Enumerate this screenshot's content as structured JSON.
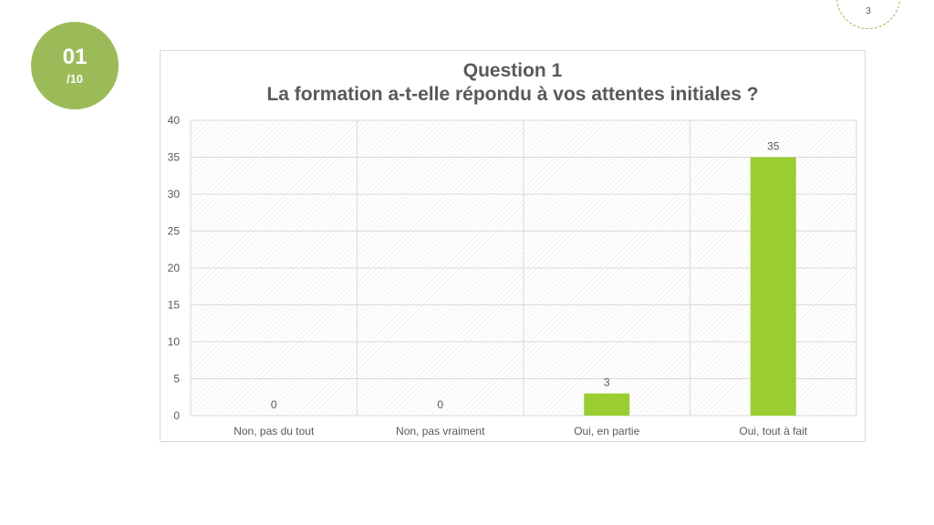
{
  "slide": {
    "badge_number": "01",
    "badge_total": "/10",
    "page_number": "3"
  },
  "colors": {
    "accent": "#9bbb59",
    "bar": "#9acd32",
    "text": "#595959",
    "grid": "#d9d9d9"
  },
  "chart_data": {
    "type": "bar",
    "title": "Question 1",
    "subtitle": "La formation a-t-elle répondu à vos attentes initiales ?",
    "categories": [
      "Non, pas du tout",
      "Non, pas vraiment",
      "Oui, en partie",
      "Oui, tout à fait"
    ],
    "values": [
      0,
      0,
      3,
      35
    ],
    "data_labels": [
      "0",
      "0",
      "3",
      "35"
    ],
    "ylim": [
      0,
      40
    ],
    "yticks": [
      0,
      5,
      10,
      15,
      20,
      25,
      30,
      35,
      40
    ],
    "grid": true,
    "legend": "none",
    "xlabel": "",
    "ylabel": ""
  }
}
